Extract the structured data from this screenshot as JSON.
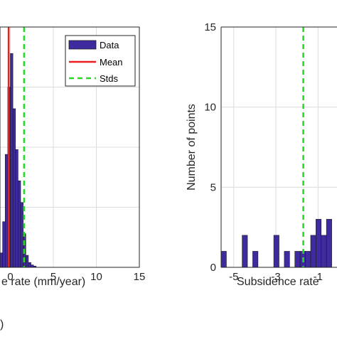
{
  "chart_data": [
    {
      "type": "bar",
      "title": "",
      "xlabel": "e rate (mm/year)",
      "ylabel": "",
      "xlim": [
        -1.2,
        15
      ],
      "x_ticks": [
        "0",
        "5",
        "10",
        "15"
      ],
      "grid": true,
      "legend_position": "top-right",
      "legend": [
        "Data",
        "Mean",
        "Stds"
      ],
      "bins": [
        {
          "x0": -1.2,
          "x1": -0.9,
          "value": 0.06
        },
        {
          "x0": -0.9,
          "x1": -0.6,
          "value": 0.19
        },
        {
          "x0": -0.6,
          "x1": -0.3,
          "value": 0.47
        },
        {
          "x0": -0.3,
          "x1": 0.0,
          "value": 0.75
        },
        {
          "x0": 0.0,
          "x1": 0.3,
          "value": 0.89
        },
        {
          "x0": 0.3,
          "x1": 0.6,
          "value": 0.66
        },
        {
          "x0": 0.6,
          "x1": 0.9,
          "value": 0.49
        },
        {
          "x0": 0.9,
          "x1": 1.2,
          "value": 0.36
        },
        {
          "x0": 1.2,
          "x1": 1.5,
          "value": 0.27
        },
        {
          "x0": 1.5,
          "x1": 1.8,
          "value": 0.14
        },
        {
          "x0": 1.8,
          "x1": 2.1,
          "value": 0.05
        },
        {
          "x0": 2.1,
          "x1": 2.4,
          "value": 0.02
        },
        {
          "x0": 2.4,
          "x1": 2.7,
          "value": 0.01
        },
        {
          "x0": 2.7,
          "x1": 3.0,
          "value": 0.005
        }
      ],
      "mean_line_x": -0.2,
      "std_line_x": 1.6,
      "colors": {
        "bar": "#3f2b9f",
        "mean": "#ee1c1c",
        "std": "#22dd22"
      }
    },
    {
      "type": "bar",
      "title": "",
      "xlabel": "Subsidence rate",
      "ylabel": "Number of points",
      "xlim": [
        -5.6,
        -0.1
      ],
      "ylim": [
        0,
        15
      ],
      "x_ticks": [
        "-5",
        "-3",
        "-1"
      ],
      "y_ticks": [
        "0",
        "5",
        "10",
        "15"
      ],
      "grid": true,
      "bins": [
        {
          "x0": -5.6,
          "x1": -5.35,
          "value": 1
        },
        {
          "x0": -4.6,
          "x1": -4.35,
          "value": 2
        },
        {
          "x0": -4.1,
          "x1": -3.85,
          "value": 1
        },
        {
          "x0": -3.1,
          "x1": -2.85,
          "value": 2
        },
        {
          "x0": -2.6,
          "x1": -2.35,
          "value": 1
        },
        {
          "x0": -2.1,
          "x1": -1.85,
          "value": 1
        },
        {
          "x0": -1.85,
          "x1": -1.6,
          "value": 1
        },
        {
          "x0": -1.6,
          "x1": -1.35,
          "value": 1
        },
        {
          "x0": -1.35,
          "x1": -1.1,
          "value": 2
        },
        {
          "x0": -1.1,
          "x1": -0.85,
          "value": 3
        },
        {
          "x0": -0.85,
          "x1": -0.6,
          "value": 2
        },
        {
          "x0": -0.6,
          "x1": -0.35,
          "value": 3
        }
      ],
      "std_line_x": -1.7,
      "colors": {
        "bar": "#3f2b9f",
        "std": "#22dd22"
      }
    }
  ],
  "panel_label": ")"
}
